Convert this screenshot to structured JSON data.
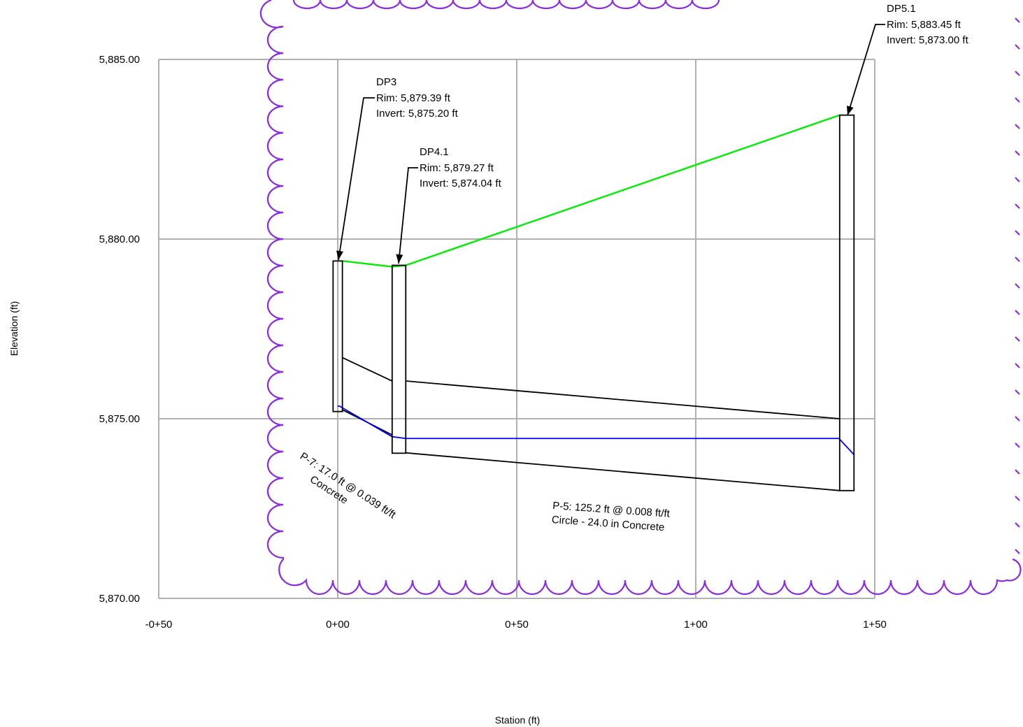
{
  "axes": {
    "xlabel": "Station (ft)",
    "ylabel": "Elevation (ft)",
    "x_ticks": [
      "-0+50",
      "0+00",
      "0+50",
      "1+00",
      "1+50"
    ],
    "y_ticks": [
      "5,870.00",
      "5,875.00",
      "5,880.00",
      "5,885.00"
    ],
    "x_range": [
      -50,
      150
    ],
    "y_range": [
      5870,
      5885
    ],
    "grid": true
  },
  "structures": [
    {
      "id": "DP3",
      "name": "DP3",
      "rim": "Rim: 5,879.39 ft",
      "invert": "Invert: 5,875.20 ft",
      "station": 0,
      "rim_elev": 5879.39,
      "invert_elev": 5875.2
    },
    {
      "id": "DP4.1",
      "name": "DP4.1",
      "rim": "Rim: 5,879.27 ft",
      "invert": "Invert: 5,874.04 ft",
      "station": 17,
      "rim_elev": 5879.27,
      "invert_elev": 5874.04
    },
    {
      "id": "DP5.1",
      "name": "DP5.1",
      "rim": "Rim: 5,883.45 ft",
      "invert": "Invert: 5,873.00 ft",
      "station": 142.2,
      "rim_elev": 5883.45,
      "invert_elev": 5873.0
    }
  ],
  "pipes": [
    {
      "id": "P-7",
      "line1": "P-7: 17.0 ft @ 0.039 ft/ft",
      "line2": "Concrete"
    },
    {
      "id": "P-5",
      "line1": "P-5: 125.2 ft @ 0.008 ft/ft",
      "line2": "Circle - 24.0 in Concrete"
    }
  ],
  "hgl": [
    [
      0,
      5875.35
    ],
    [
      0.5,
      5875.35
    ],
    [
      15.2,
      5874.5
    ],
    [
      19,
      5874.45
    ],
    [
      140,
      5874.45
    ],
    [
      144.2,
      5874.0
    ]
  ],
  "colors": {
    "ground": "#00ee00",
    "hgl": "#0000ff",
    "revision_cloud": "#8a2be2",
    "grid": "#b0b0b0",
    "structure": "#000000"
  }
}
